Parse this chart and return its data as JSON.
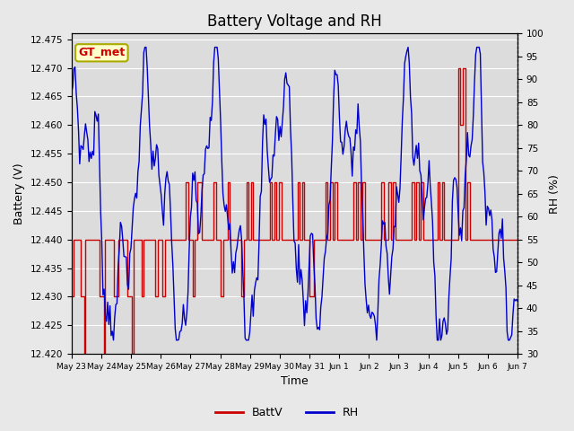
{
  "title": "Battery Voltage and RH",
  "xlabel": "Time",
  "ylabel_left": "Battery (V)",
  "ylabel_right": "RH (%)",
  "annotation_text": "GT_met",
  "annotation_box_color": "#ffffcc",
  "annotation_text_color": "#cc0000",
  "annotation_border_color": "#aaaa00",
  "left_ylim": [
    12.42,
    12.476
  ],
  "right_ylim": [
    30,
    100
  ],
  "left_yticks": [
    12.42,
    12.425,
    12.43,
    12.435,
    12.44,
    12.445,
    12.45,
    12.455,
    12.46,
    12.465,
    12.47,
    12.475
  ],
  "right_yticks": [
    30,
    35,
    40,
    45,
    50,
    55,
    60,
    65,
    70,
    75,
    80,
    85,
    90,
    95,
    100
  ],
  "x_tick_labels": [
    "May 23",
    "May 24",
    "May 25",
    "May 26",
    "May 27",
    "May 28",
    "May 29",
    "May 30",
    "May 31",
    "Jun 1",
    "Jun 2",
    "Jun 3",
    "Jun 4",
    "Jun 5",
    "Jun 6",
    "Jun 7"
  ],
  "batt_color": "#cc0000",
  "rh_color": "#0000cc",
  "background_color": "#e8e8e8",
  "plot_bg_color": "#dcdcdc",
  "grid_color": "#ffffff",
  "title_fontsize": 12,
  "axis_label_fontsize": 9,
  "tick_fontsize": 7.5,
  "legend_fontsize": 9
}
